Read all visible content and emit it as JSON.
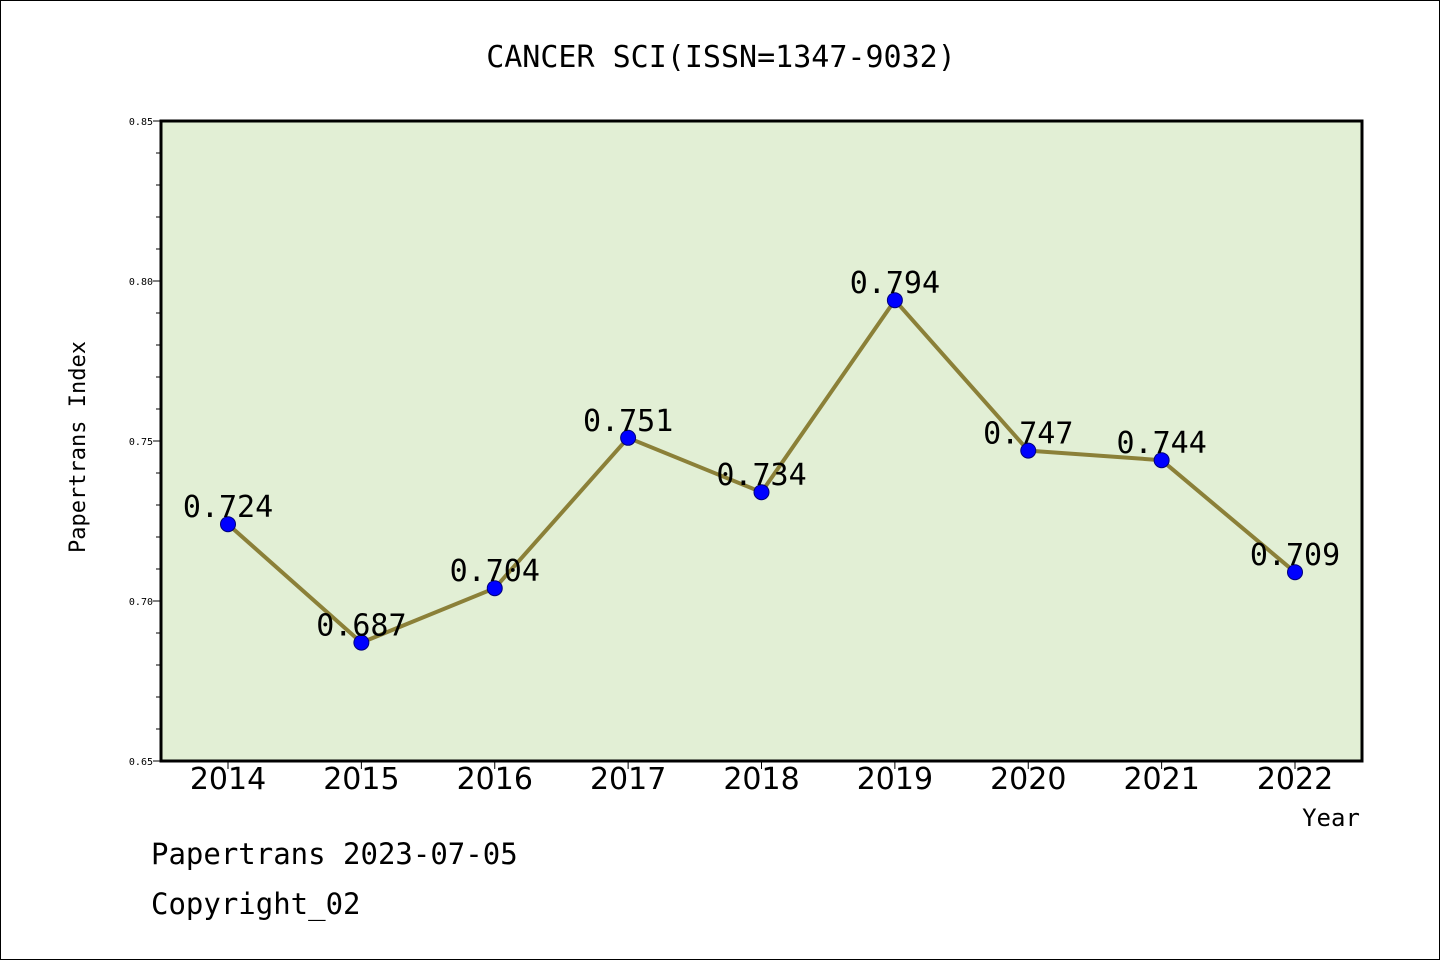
{
  "chart_data": {
    "type": "line",
    "title": "CANCER SCI(ISSN=1347-9032)",
    "xlabel": "Year",
    "ylabel": "Papertrans Index",
    "categories": [
      "2014",
      "2015",
      "2016",
      "2017",
      "2018",
      "2019",
      "2020",
      "2021",
      "2022"
    ],
    "series": [
      {
        "values": [
          0.724,
          0.687,
          0.704,
          0.751,
          0.734,
          0.794,
          0.747,
          0.744,
          0.709
        ],
        "labels": [
          "0.724",
          "0.687",
          "0.704",
          "0.751",
          "0.734",
          "0.794",
          "0.747",
          "0.744",
          "0.709"
        ]
      }
    ],
    "yticks": [
      "0.65",
      "0.70",
      "0.75",
      "0.80",
      "0.85"
    ],
    "ylim": [
      0.65,
      0.85
    ],
    "grid": false,
    "colors": {
      "plot_background": "#e2efd5",
      "line": "#8b8038",
      "marker": "#0000ff"
    }
  },
  "footer": {
    "line1": "Papertrans 2023-07-05",
    "line2": "Copyright_02"
  }
}
